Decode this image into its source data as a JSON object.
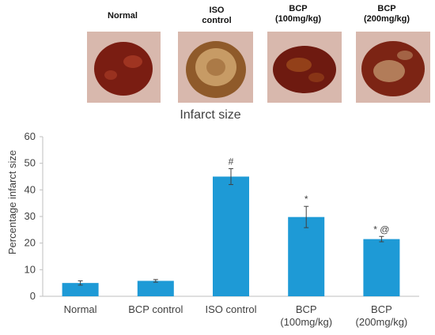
{
  "photos": [
    {
      "label": "Normal",
      "tissue": "#7a1d12",
      "highlight": "#b8452c"
    },
    {
      "label": "ISO\ncontrol",
      "tissue": "#8f5a2a",
      "highlight": "#d9b27a"
    },
    {
      "label": "BCP\n(100mg/kg)",
      "tissue": "#6e1a10",
      "highlight": "#a8551e"
    },
    {
      "label": "BCP\n(200mg/kg)",
      "tissue": "#7c2414",
      "highlight": "#c9a276"
    }
  ],
  "chart_data": {
    "type": "bar",
    "title": "Infarct size",
    "xlabel": "",
    "ylabel": "Percentage infarct size",
    "ylim": [
      0,
      60
    ],
    "yticks": [
      0,
      10,
      20,
      30,
      40,
      50,
      60
    ],
    "grid": false,
    "bar_color": "#1e9ad6",
    "categories": [
      "Normal",
      "BCP control",
      "ISO  control",
      "BCP\n(100mg/kg)",
      "BCP\n(200mg/kg)"
    ],
    "values": [
      5,
      5.8,
      45,
      29.8,
      21.5
    ],
    "errors": [
      0.8,
      0.5,
      3,
      4,
      1
    ],
    "annotations": [
      "",
      "",
      "#",
      "*",
      "* @"
    ]
  }
}
